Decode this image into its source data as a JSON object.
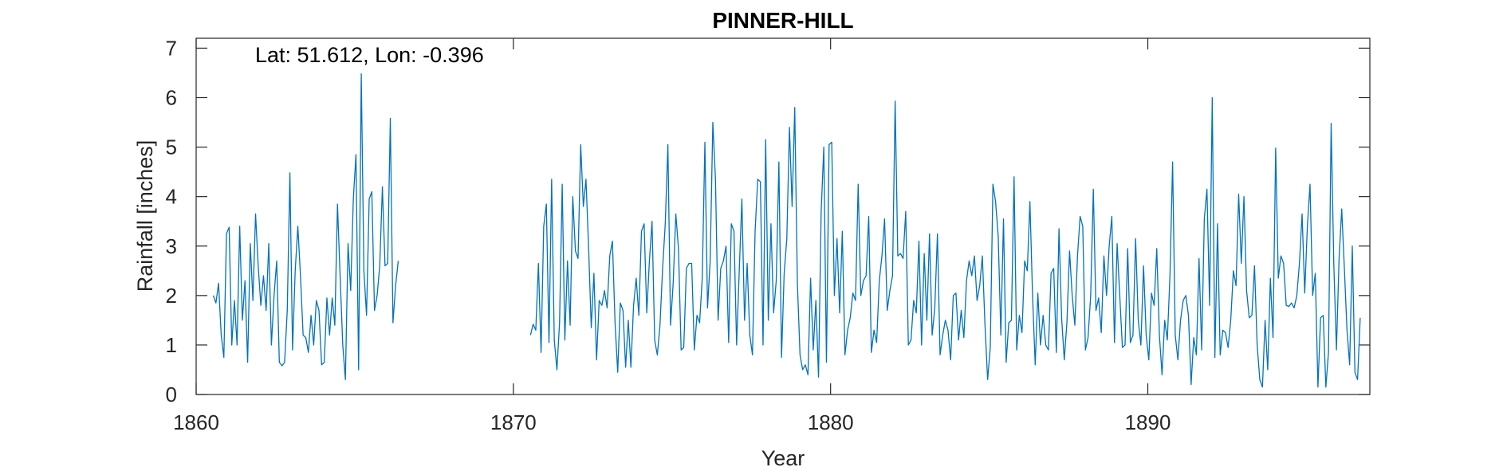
{
  "chart_data": {
    "type": "line",
    "title": "PINNER-HILL",
    "xlabel": "Year",
    "ylabel": "Rainfall [inches]",
    "annotation": "Lat: 51.612, Lon: -0.396",
    "xlim": [
      1860,
      1897
    ],
    "ylim": [
      0,
      7.2
    ],
    "xticks": [
      1860,
      1870,
      1880,
      1890
    ],
    "yticks": [
      0,
      1,
      2,
      3,
      4,
      5,
      6,
      7
    ],
    "grid": false,
    "line_color": "#0072BD",
    "series": [
      {
        "segments": [
          {
            "x_start": 1860.54,
            "step": 0.0833,
            "values": [
              2.0,
              1.85,
              2.25,
              1.2,
              0.75,
              3.25,
              3.38,
              1.0,
              1.9,
              1.0,
              3.4,
              1.5,
              2.3,
              0.65,
              3.05,
              1.9,
              3.65,
              2.6,
              1.8,
              2.4,
              1.7,
              3.05,
              1.0,
              2.0,
              2.7,
              0.65,
              0.58,
              0.65,
              1.7,
              4.48,
              0.9,
              2.5,
              3.4,
              2.4,
              1.2,
              1.15,
              0.85,
              1.6,
              1.0,
              1.9,
              1.7,
              0.6,
              0.65,
              1.95,
              1.2,
              1.95,
              1.4,
              3.85,
              2.4,
              1.0,
              0.3,
              3.05,
              2.1,
              3.95,
              4.85,
              0.5,
              6.48,
              2.5,
              1.6,
              3.95,
              4.1,
              1.7,
              2.0,
              2.6,
              4.2,
              2.6,
              2.65,
              5.58,
              1.45,
              2.2,
              2.7
            ]
          },
          {
            "x_start": 1870.54,
            "step": 0.0833,
            "values": [
              1.2,
              1.42,
              1.3,
              2.65,
              0.85,
              3.4,
              3.85,
              1.05,
              4.35,
              1.1,
              0.5,
              1.45,
              4.25,
              1.1,
              2.7,
              1.4,
              4.0,
              2.9,
              2.75,
              5.05,
              3.8,
              4.35,
              2.95,
              1.35,
              2.45,
              0.7,
              1.9,
              1.8,
              2.1,
              1.75,
              2.8,
              3.1,
              1.45,
              0.45,
              1.85,
              1.7,
              0.55,
              1.5,
              0.55,
              1.8,
              2.35,
              1.6,
              3.3,
              3.45,
              1.65,
              2.7,
              3.5,
              1.1,
              0.8,
              1.4,
              2.55,
              3.45,
              5.05,
              1.4,
              2.25,
              3.65,
              2.95,
              0.9,
              0.95,
              2.55,
              2.65,
              2.65,
              0.9,
              1.6,
              1.45,
              2.35,
              5.1,
              1.75,
              2.7,
              5.5,
              4.35,
              1.5,
              2.55,
              2.7,
              3.0,
              1.05,
              3.45,
              3.3,
              1.0,
              2.5,
              3.95,
              1.5,
              2.65,
              1.2,
              0.8,
              3.3,
              4.35,
              4.3,
              1.0,
              5.15,
              1.5,
              3.45,
              1.65,
              2.3,
              4.7,
              0.75,
              2.45,
              3.15,
              5.4,
              3.8,
              5.8,
              2.25,
              0.8,
              0.5,
              0.6,
              0.4,
              2.35,
              0.9,
              1.9,
              0.35,
              3.7,
              5.0,
              0.65,
              5.05,
              5.1,
              2.0,
              3.15,
              1.65,
              3.3,
              0.8,
              1.3,
              1.55,
              2.05,
              1.9,
              4.25,
              2.0,
              2.3,
              2.4,
              3.6,
              0.85,
              1.3,
              1.05,
              2.3,
              2.8,
              3.55,
              1.7,
              2.1,
              2.4,
              5.93,
              2.8,
              2.85,
              2.75,
              3.7,
              1.0,
              1.1,
              1.9,
              1.65,
              3.1,
              1.0,
              2.85,
              1.5,
              3.25,
              1.2,
              1.75,
              3.25,
              0.8,
              1.2,
              1.5,
              1.3,
              0.7,
              2.0,
              2.05,
              1.1,
              1.7,
              1.15,
              2.3,
              2.7,
              2.4,
              2.8,
              1.9,
              2.2,
              2.8,
              1.4,
              0.3,
              0.95,
              4.25,
              3.9,
              3.2,
              1.2,
              3.55,
              0.65,
              1.45,
              1.5,
              4.4,
              0.9,
              1.6,
              1.25,
              2.7,
              2.5,
              3.9,
              2.0,
              0.6,
              2.05,
              1.0,
              1.6,
              1.0,
              0.9,
              2.45,
              2.55,
              0.85,
              3.35,
              1.55,
              0.7,
              1.45,
              2.9,
              2.0,
              1.4,
              2.8,
              3.6,
              3.4,
              0.9,
              1.15,
              2.0,
              4.15,
              1.7,
              1.95,
              1.25,
              2.8,
              2.0,
              3.0,
              3.6,
              1.05,
              3.05,
              2.0,
              0.95,
              1.0,
              2.95,
              1.05,
              1.2,
              3.15,
              1.5,
              1.0,
              2.6,
              1.2,
              0.7,
              2.05,
              1.8,
              2.95,
              1.2,
              0.4,
              1.5,
              1.1,
              2.4,
              4.7,
              1.2,
              0.7,
              1.5,
              1.9,
              2.0,
              1.6,
              0.2,
              1.15,
              0.8,
              2.75,
              0.9,
              3.55,
              4.15,
              1.8,
              6.0,
              0.75,
              3.45,
              0.8,
              1.3,
              1.25,
              0.95,
              1.5,
              2.5,
              2.2,
              4.05,
              2.65,
              4.0,
              2.1,
              1.55,
              1.6,
              2.6,
              1.0,
              0.3,
              0.15,
              1.5,
              0.5,
              2.35,
              1.15,
              4.98,
              2.35,
              2.8,
              2.65,
              1.8,
              1.78,
              1.85,
              1.75,
              2.0,
              2.65,
              3.65,
              2.05,
              3.4,
              4.25,
              2.0,
              2.45,
              0.15,
              1.55,
              1.6,
              0.15,
              0.85,
              5.48,
              2.65,
              0.9,
              2.75,
              3.75,
              2.55,
              1.3,
              0.6,
              3.0,
              0.45,
              0.3,
              1.55
            ]
          }
        ]
      }
    ]
  }
}
